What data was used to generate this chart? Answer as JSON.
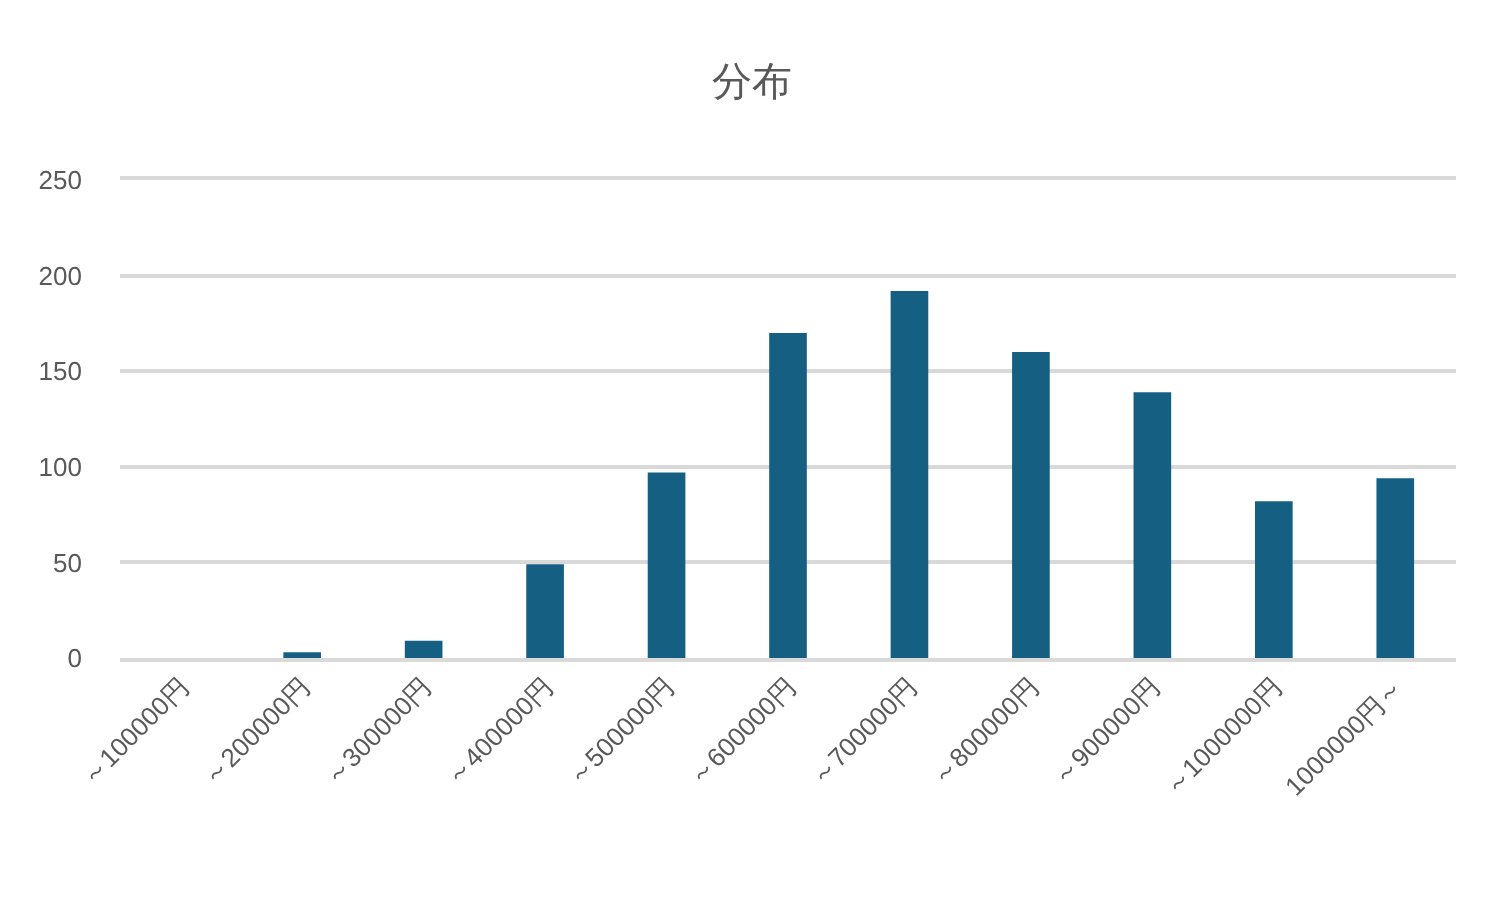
{
  "chart_data": {
    "type": "bar",
    "title": "分布",
    "categories": [
      "～100000円",
      "～200000円",
      "～300000円",
      "～400000円",
      "～500000円",
      "～600000円",
      "～700000円",
      "～800000円",
      "～900000円",
      "～1000000円",
      "1000000円～"
    ],
    "values": [
      0,
      3,
      9,
      49,
      97,
      170,
      192,
      160,
      139,
      82,
      94
    ],
    "color": "#156082",
    "ylim": [
      0,
      250
    ],
    "yticks": [
      0,
      50,
      100,
      150,
      200,
      250
    ],
    "grid": "y"
  }
}
